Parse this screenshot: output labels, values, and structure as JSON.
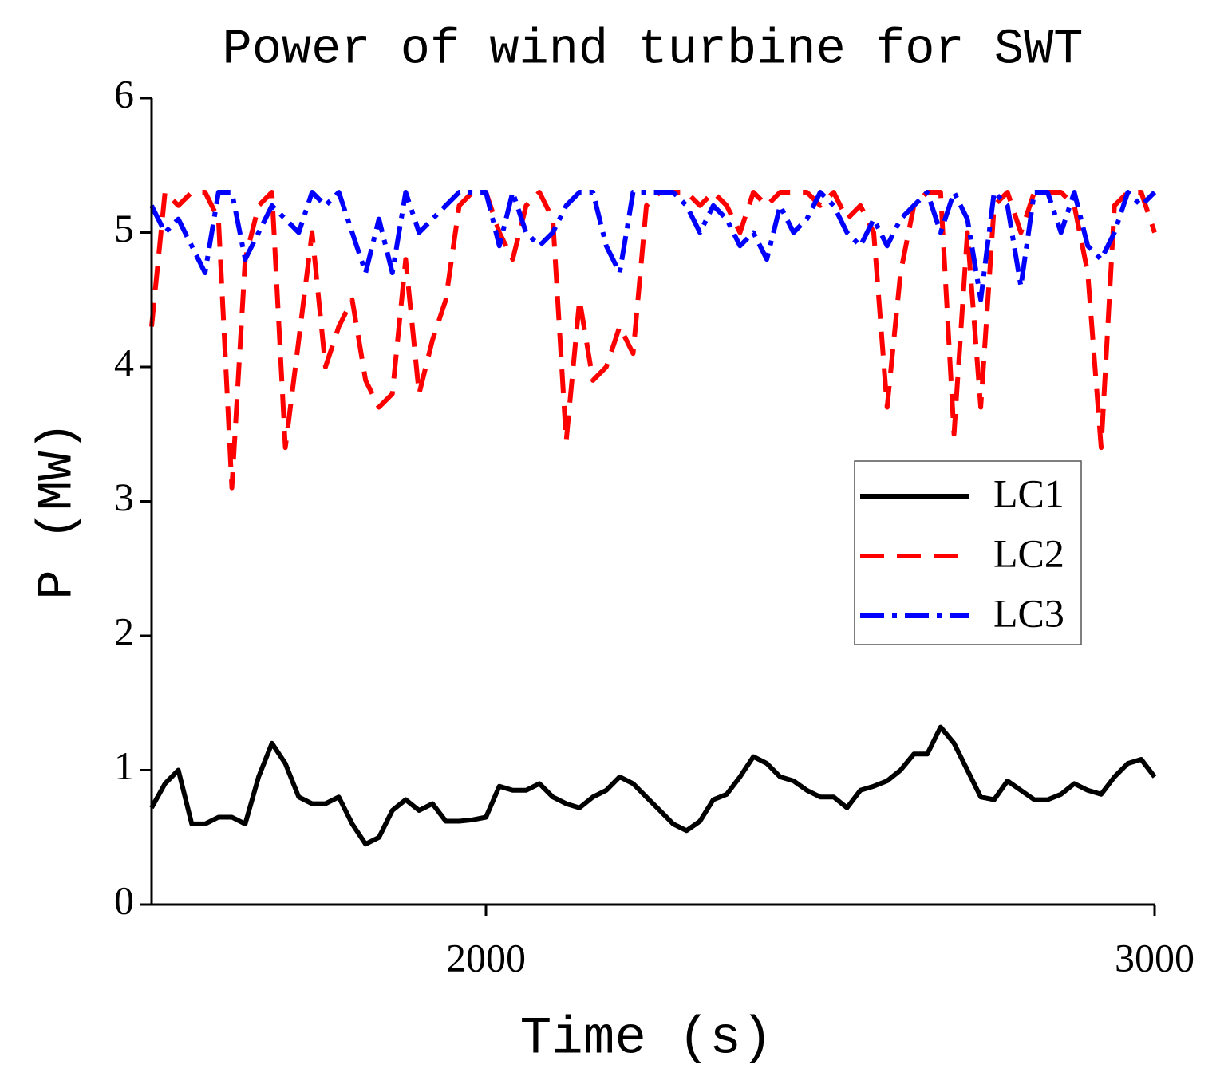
{
  "chart_data": {
    "type": "line",
    "title": "Power of wind turbine for SWT",
    "x_label": "Time (s)",
    "y_label": "P (MW)",
    "x": [
      1500,
      1520,
      1540,
      1560,
      1580,
      1600,
      1620,
      1640,
      1660,
      1680,
      1700,
      1720,
      1740,
      1760,
      1780,
      1800,
      1820,
      1840,
      1860,
      1880,
      1900,
      1920,
      1940,
      1960,
      1980,
      2000,
      2020,
      2040,
      2060,
      2080,
      2100,
      2120,
      2140,
      2160,
      2180,
      2200,
      2220,
      2240,
      2260,
      2280,
      2300,
      2320,
      2340,
      2360,
      2380,
      2400,
      2420,
      2440,
      2460,
      2480,
      2500,
      2520,
      2540,
      2560,
      2580,
      2600,
      2620,
      2640,
      2660,
      2680,
      2700,
      2720,
      2740,
      2760,
      2780,
      2800,
      2820,
      2840,
      2860,
      2880,
      2900,
      2920,
      2940,
      2960,
      2980,
      3000
    ],
    "series": [
      {
        "name": "LC1",
        "color": "#000000",
        "dash": "solid",
        "values": [
          0.72,
          0.9,
          1.0,
          0.6,
          0.6,
          0.65,
          0.65,
          0.6,
          0.95,
          1.2,
          1.05,
          0.8,
          0.75,
          0.75,
          0.8,
          0.6,
          0.45,
          0.5,
          0.7,
          0.78,
          0.7,
          0.75,
          0.62,
          0.62,
          0.63,
          0.65,
          0.88,
          0.85,
          0.85,
          0.9,
          0.8,
          0.75,
          0.72,
          0.8,
          0.85,
          0.95,
          0.9,
          0.8,
          0.7,
          0.6,
          0.55,
          0.62,
          0.78,
          0.82,
          0.95,
          1.1,
          1.05,
          0.95,
          0.92,
          0.85,
          0.8,
          0.8,
          0.72,
          0.85,
          0.88,
          0.92,
          1.0,
          1.12,
          1.12,
          1.32,
          1.2,
          1.0,
          0.8,
          0.78,
          0.92,
          0.85,
          0.78,
          0.78,
          0.82,
          0.9,
          0.85,
          0.82,
          0.95,
          1.05,
          1.08,
          0.95
        ]
      },
      {
        "name": "LC2",
        "color": "#ff0000",
        "dash": "dash",
        "values": [
          4.3,
          5.3,
          5.2,
          5.3,
          5.3,
          5.1,
          3.1,
          4.8,
          5.2,
          5.3,
          3.4,
          4.2,
          5.0,
          4.0,
          4.3,
          4.5,
          3.9,
          3.7,
          3.8,
          4.8,
          3.8,
          4.2,
          4.5,
          5.2,
          5.3,
          5.3,
          5.0,
          4.8,
          5.2,
          5.3,
          5.1,
          3.45,
          4.5,
          3.9,
          4.0,
          4.3,
          4.1,
          5.2,
          5.3,
          5.3,
          5.3,
          5.2,
          5.3,
          5.2,
          5.0,
          5.3,
          5.2,
          5.3,
          5.3,
          5.3,
          5.2,
          5.3,
          5.1,
          5.2,
          5.0,
          3.7,
          4.7,
          5.2,
          5.3,
          5.3,
          3.5,
          5.0,
          3.7,
          5.2,
          5.3,
          5.0,
          5.3,
          5.3,
          5.3,
          5.2,
          4.7,
          3.4,
          5.2,
          5.3,
          5.3,
          5.0
        ]
      },
      {
        "name": "LC3",
        "color": "#0000ff",
        "dash": "dashdot",
        "values": [
          5.2,
          5.0,
          5.1,
          4.9,
          4.7,
          5.3,
          5.3,
          4.8,
          5.0,
          5.2,
          5.1,
          5.0,
          5.3,
          5.2,
          5.3,
          5.0,
          4.7,
          5.1,
          4.7,
          5.3,
          5.0,
          5.1,
          5.2,
          5.3,
          5.3,
          5.3,
          4.9,
          5.3,
          5.0,
          4.9,
          5.0,
          5.2,
          5.3,
          5.3,
          4.9,
          4.7,
          5.3,
          5.3,
          5.3,
          5.3,
          5.2,
          5.0,
          5.2,
          5.1,
          4.9,
          5.0,
          4.8,
          5.2,
          5.0,
          5.1,
          5.3,
          5.2,
          5.0,
          4.9,
          5.1,
          4.9,
          5.1,
          5.2,
          5.3,
          5.0,
          5.3,
          5.1,
          4.5,
          5.3,
          5.2,
          4.6,
          5.3,
          5.3,
          5.0,
          5.3,
          4.9,
          4.8,
          5.0,
          5.3,
          5.2,
          5.3
        ]
      }
    ],
    "xlim": [
      1500,
      3000
    ],
    "xticks": [
      2000,
      3000
    ],
    "ylim": [
      0,
      6
    ],
    "yticks": [
      0,
      1,
      2,
      3,
      4,
      5,
      6
    ],
    "grid": false,
    "legend": "right"
  }
}
